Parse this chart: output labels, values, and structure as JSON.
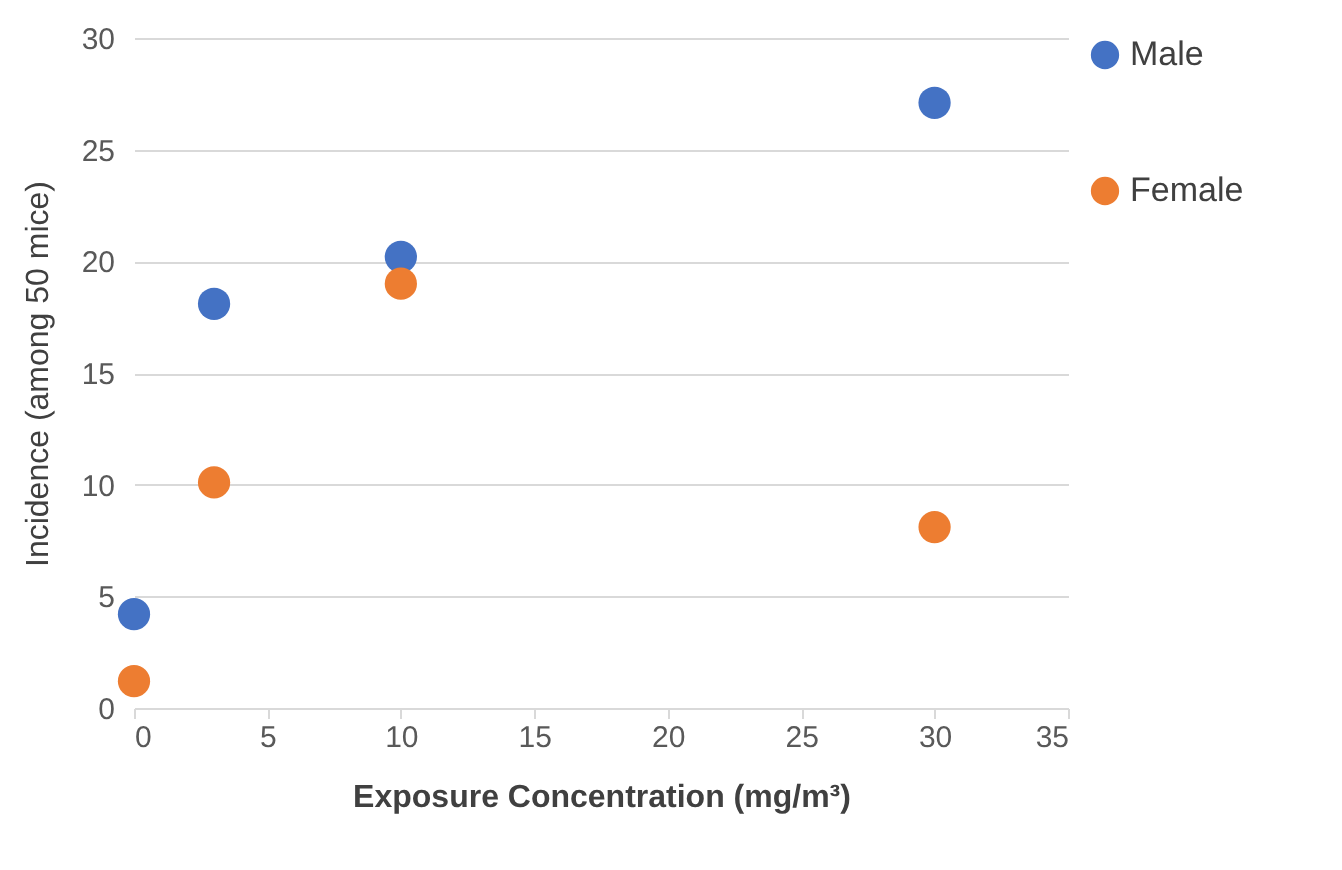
{
  "chart_data": {
    "type": "scatter",
    "xlabel": "Exposure Concentration  (mg/m³)",
    "ylabel": "Incidence (among 50 mice)",
    "x": [
      0,
      3,
      10,
      30
    ],
    "series": [
      {
        "name": "Male",
        "color": "#4472c4",
        "values": [
          4.2,
          18.1,
          20.2,
          27.1
        ]
      },
      {
        "name": "Female",
        "color": "#ed7d31",
        "values": [
          1.2,
          10.1,
          19,
          8.1
        ]
      }
    ],
    "xlim": [
      0,
      35
    ],
    "xticks": [
      0,
      5,
      10,
      15,
      20,
      25,
      30,
      35
    ],
    "ylim": [
      0,
      30
    ],
    "yticks": [
      0,
      5,
      10,
      15,
      20,
      25,
      30
    ],
    "grid": "y",
    "legend": "right",
    "marker": "circle"
  }
}
